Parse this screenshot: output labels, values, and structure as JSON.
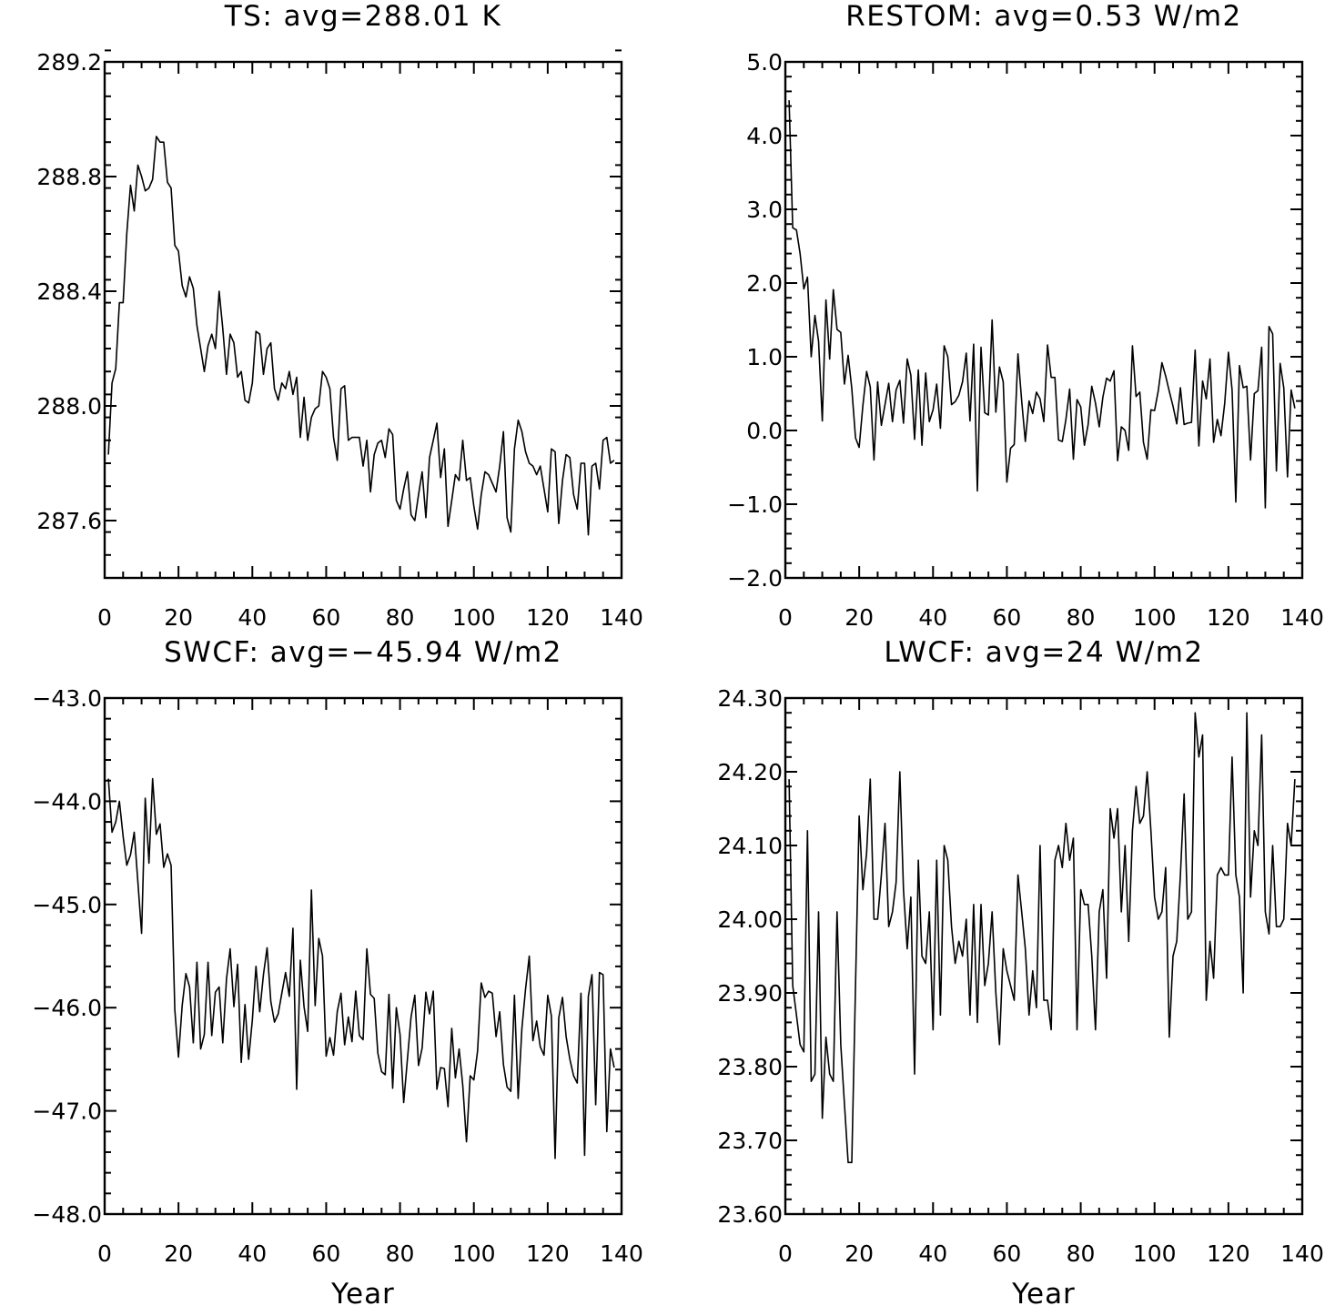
{
  "chart_data": [
    {
      "type": "line",
      "title": "TS: avg=288.01 K",
      "xlabel": "",
      "ylabel": "",
      "xlim": [
        0,
        140
      ],
      "ylim": [
        287.4,
        289.2
      ],
      "xticks": [
        0,
        20,
        40,
        60,
        80,
        100,
        120,
        140
      ],
      "xtick_labels": [
        "0",
        "20",
        "40",
        "60",
        "80",
        "100",
        "120",
        "140"
      ],
      "yticks": [
        287.6,
        288.0,
        288.4,
        288.8,
        289.2
      ],
      "ytick_labels": [
        "287.6",
        "288.0",
        "288.4",
        "288.8",
        "289.2"
      ],
      "grid": false,
      "series": [
        {
          "x_start": 1,
          "x_step": 1,
          "values": [
            287.83,
            288.08,
            288.13,
            288.36,
            288.36,
            288.6,
            288.77,
            288.68,
            288.84,
            288.8,
            288.75,
            288.76,
            288.79,
            288.94,
            288.92,
            288.92,
            288.78,
            288.76,
            288.56,
            288.54,
            288.42,
            288.38,
            288.45,
            288.41,
            288.28,
            288.2,
            288.12,
            288.21,
            288.25,
            288.2,
            288.4,
            288.27,
            288.11,
            288.25,
            288.22,
            288.1,
            288.12,
            288.02,
            288.01,
            288.08,
            288.26,
            288.25,
            288.11,
            288.2,
            288.22,
            288.06,
            288.02,
            288.08,
            288.06,
            288.12,
            288.04,
            288.1,
            287.89,
            288.03,
            287.88,
            287.96,
            287.99,
            288.0,
            288.12,
            288.1,
            288.06,
            287.89,
            287.81,
            288.06,
            288.07,
            287.88,
            287.89,
            287.89,
            287.89,
            287.79,
            287.88,
            287.7,
            287.83,
            287.87,
            287.88,
            287.82,
            287.92,
            287.9,
            287.67,
            287.64,
            287.71,
            287.77,
            287.62,
            287.6,
            287.69,
            287.77,
            287.61,
            287.82,
            287.88,
            287.94,
            287.75,
            287.85,
            287.58,
            287.67,
            287.76,
            287.74,
            287.88,
            287.74,
            287.75,
            287.65,
            287.57,
            287.69,
            287.77,
            287.76,
            287.73,
            287.7,
            287.79,
            287.91,
            287.61,
            287.56,
            287.85,
            287.95,
            287.91,
            287.84,
            287.8,
            287.79,
            287.76,
            287.79,
            287.71,
            287.63,
            287.85,
            287.84,
            287.59,
            287.74,
            287.83,
            287.82,
            287.69,
            287.64,
            287.8,
            287.8,
            287.55,
            287.79,
            287.8,
            287.71,
            287.88,
            287.89,
            287.8,
            287.81
          ]
        }
      ]
    },
    {
      "type": "line",
      "title": "RESTOM: avg=0.53 W/m2",
      "xlabel": "",
      "ylabel": "",
      "xlim": [
        0,
        140
      ],
      "ylim": [
        -2.0,
        5.0
      ],
      "xticks": [
        0,
        20,
        40,
        60,
        80,
        100,
        120,
        140
      ],
      "xtick_labels": [
        "0",
        "20",
        "40",
        "60",
        "80",
        "100",
        "120",
        "140"
      ],
      "yticks": [
        -2.0,
        -1.0,
        0.0,
        1.0,
        2.0,
        3.0,
        4.0,
        5.0
      ],
      "ytick_labels": [
        "−2.0",
        "−1.0",
        "0.0",
        "1.0",
        "2.0",
        "3.0",
        "4.0",
        "5.0"
      ],
      "grid": false,
      "series": [
        {
          "x_start": 1,
          "x_step": 1,
          "values": [
            4.48,
            2.75,
            2.72,
            2.4,
            1.92,
            2.08,
            1.0,
            1.56,
            1.21,
            0.13,
            1.77,
            0.97,
            1.91,
            1.37,
            1.33,
            0.63,
            1.02,
            0.57,
            -0.1,
            -0.23,
            0.34,
            0.8,
            0.59,
            -0.4,
            0.66,
            0.07,
            0.35,
            0.64,
            0.12,
            0.55,
            0.68,
            0.1,
            0.97,
            0.75,
            -0.12,
            0.82,
            -0.2,
            0.78,
            0.12,
            0.28,
            0.63,
            0.03,
            1.15,
            1.0,
            0.35,
            0.39,
            0.48,
            0.66,
            1.05,
            0.13,
            1.17,
            -0.82,
            1.13,
            0.24,
            0.21,
            1.5,
            0.25,
            0.86,
            0.66,
            -0.7,
            -0.24,
            -0.19,
            1.04,
            0.4,
            -0.15,
            0.4,
            0.23,
            0.52,
            0.43,
            0.12,
            1.16,
            0.72,
            0.72,
            -0.13,
            -0.15,
            0.15,
            0.56,
            -0.39,
            0.42,
            0.32,
            -0.2,
            0.08,
            0.6,
            0.37,
            0.05,
            0.45,
            0.71,
            0.67,
            0.81,
            -0.41,
            0.05,
            0.0,
            -0.27,
            1.15,
            0.46,
            0.52,
            -0.16,
            -0.39,
            0.28,
            0.27,
            0.54,
            0.92,
            0.74,
            0.53,
            0.33,
            0.09,
            0.58,
            0.08,
            0.1,
            0.11,
            1.09,
            -0.21,
            0.67,
            0.43,
            0.97,
            -0.16,
            0.15,
            -0.07,
            0.37,
            1.06,
            0.55,
            -0.97,
            0.88,
            0.58,
            0.6,
            -0.4,
            0.5,
            0.54,
            1.13,
            -1.05,
            1.41,
            1.31,
            -0.55,
            0.91,
            0.58,
            -0.63,
            0.55,
            0.3
          ]
        }
      ]
    },
    {
      "type": "line",
      "title": "SWCF: avg=−45.94 W/m2",
      "xlabel": "Year",
      "ylabel": "",
      "xlim": [
        0,
        140
      ],
      "ylim": [
        -48.0,
        -43.0
      ],
      "xticks": [
        0,
        20,
        40,
        60,
        80,
        100,
        120,
        140
      ],
      "xtick_labels": [
        "0",
        "20",
        "40",
        "60",
        "80",
        "100",
        "120",
        "140"
      ],
      "yticks": [
        -48.0,
        -47.0,
        -46.0,
        -45.0,
        -44.0,
        -43.0
      ],
      "ytick_labels": [
        "−48.0",
        "−47.0",
        "−46.0",
        "−45.0",
        "−44.0",
        "−43.0"
      ],
      "grid": false,
      "series": [
        {
          "x_start": 1,
          "x_step": 1,
          "values": [
            -43.78,
            -44.3,
            -44.2,
            -44.0,
            -44.34,
            -44.62,
            -44.52,
            -44.3,
            -44.78,
            -45.28,
            -43.97,
            -44.6,
            -43.78,
            -44.32,
            -44.22,
            -44.64,
            -44.51,
            -44.62,
            -46.02,
            -46.48,
            -45.98,
            -45.67,
            -45.8,
            -46.34,
            -45.56,
            -46.4,
            -46.26,
            -45.56,
            -46.27,
            -45.85,
            -45.8,
            -46.34,
            -45.72,
            -45.43,
            -45.99,
            -45.58,
            -46.53,
            -45.97,
            -46.5,
            -46.12,
            -45.6,
            -46.04,
            -45.68,
            -45.42,
            -45.94,
            -46.14,
            -46.06,
            -45.86,
            -45.66,
            -45.89,
            -45.23,
            -46.79,
            -45.54,
            -45.99,
            -46.23,
            -44.86,
            -45.98,
            -45.33,
            -45.5,
            -46.47,
            -46.29,
            -46.46,
            -46.04,
            -45.86,
            -46.36,
            -46.09,
            -46.33,
            -45.84,
            -46.27,
            -46.31,
            -45.43,
            -45.87,
            -45.91,
            -46.44,
            -46.62,
            -46.65,
            -45.87,
            -46.78,
            -46.0,
            -46.26,
            -46.92,
            -46.5,
            -46.09,
            -45.88,
            -46.56,
            -46.39,
            -45.85,
            -46.06,
            -45.84,
            -46.79,
            -46.58,
            -46.59,
            -46.96,
            -46.2,
            -46.68,
            -46.4,
            -46.75,
            -47.3,
            -46.66,
            -46.7,
            -46.42,
            -45.76,
            -45.9,
            -45.84,
            -45.86,
            -46.28,
            -46.04,
            -46.55,
            -46.77,
            -46.81,
            -45.88,
            -46.88,
            -46.2,
            -45.82,
            -45.5,
            -46.32,
            -46.13,
            -46.38,
            -46.46,
            -45.88,
            -46.08,
            -47.46,
            -46.1,
            -45.9,
            -46.28,
            -46.5,
            -46.66,
            -46.73,
            -45.86,
            -47.43,
            -45.89,
            -45.68,
            -46.94,
            -45.66,
            -45.68,
            -47.2,
            -46.4,
            -46.58
          ]
        }
      ]
    },
    {
      "type": "line",
      "title": "LWCF: avg=24 W/m2",
      "xlabel": "Year",
      "ylabel": "",
      "xlim": [
        0,
        140
      ],
      "ylim": [
        23.6,
        24.3
      ],
      "xticks": [
        0,
        20,
        40,
        60,
        80,
        100,
        120,
        140
      ],
      "xtick_labels": [
        "0",
        "20",
        "40",
        "60",
        "80",
        "100",
        "120",
        "140"
      ],
      "yticks": [
        23.6,
        23.7,
        23.8,
        23.9,
        24.0,
        24.1,
        24.2,
        24.3
      ],
      "ytick_labels": [
        "23.60",
        "23.70",
        "23.80",
        "23.90",
        "24.00",
        "24.10",
        "24.20",
        "24.30"
      ],
      "grid": false,
      "series": [
        {
          "x_start": 1,
          "x_step": 1,
          "values": [
            24.19,
            23.91,
            23.87,
            23.83,
            23.82,
            24.12,
            23.78,
            23.79,
            24.01,
            23.73,
            23.84,
            23.79,
            23.78,
            24.01,
            23.83,
            23.75,
            23.67,
            23.67,
            23.91,
            24.14,
            24.04,
            24.09,
            24.19,
            24.0,
            24.0,
            24.06,
            24.13,
            23.99,
            24.01,
            24.05,
            24.2,
            24.04,
            23.96,
            24.03,
            23.79,
            24.08,
            23.95,
            23.94,
            24.01,
            23.85,
            24.08,
            23.87,
            24.1,
            24.08,
            23.99,
            23.94,
            23.97,
            23.95,
            24.0,
            23.87,
            24.02,
            23.86,
            24.02,
            23.91,
            23.94,
            24.01,
            23.9,
            23.83,
            23.96,
            23.93,
            23.91,
            23.89,
            24.06,
            24.01,
            23.96,
            23.87,
            23.93,
            23.88,
            24.1,
            23.89,
            23.89,
            23.85,
            24.08,
            24.1,
            24.07,
            24.13,
            24.08,
            24.11,
            23.85,
            24.04,
            24.02,
            24.02,
            23.95,
            23.85,
            24.01,
            24.04,
            23.92,
            24.15,
            24.11,
            24.15,
            24.01,
            24.1,
            23.97,
            24.12,
            24.18,
            24.13,
            24.14,
            24.2,
            24.12,
            24.03,
            24.0,
            24.01,
            24.07,
            23.84,
            23.95,
            23.97,
            24.06,
            24.17,
            24.0,
            24.01,
            24.28,
            24.22,
            24.25,
            23.89,
            23.97,
            23.92,
            24.06,
            24.07,
            24.06,
            24.06,
            24.22,
            24.06,
            24.03,
            23.9,
            24.28,
            24.03,
            24.12,
            24.1,
            24.25,
            24.01,
            23.98,
            24.1,
            23.99,
            23.99,
            24.0,
            24.13,
            24.1,
            24.19
          ]
        }
      ]
    }
  ]
}
